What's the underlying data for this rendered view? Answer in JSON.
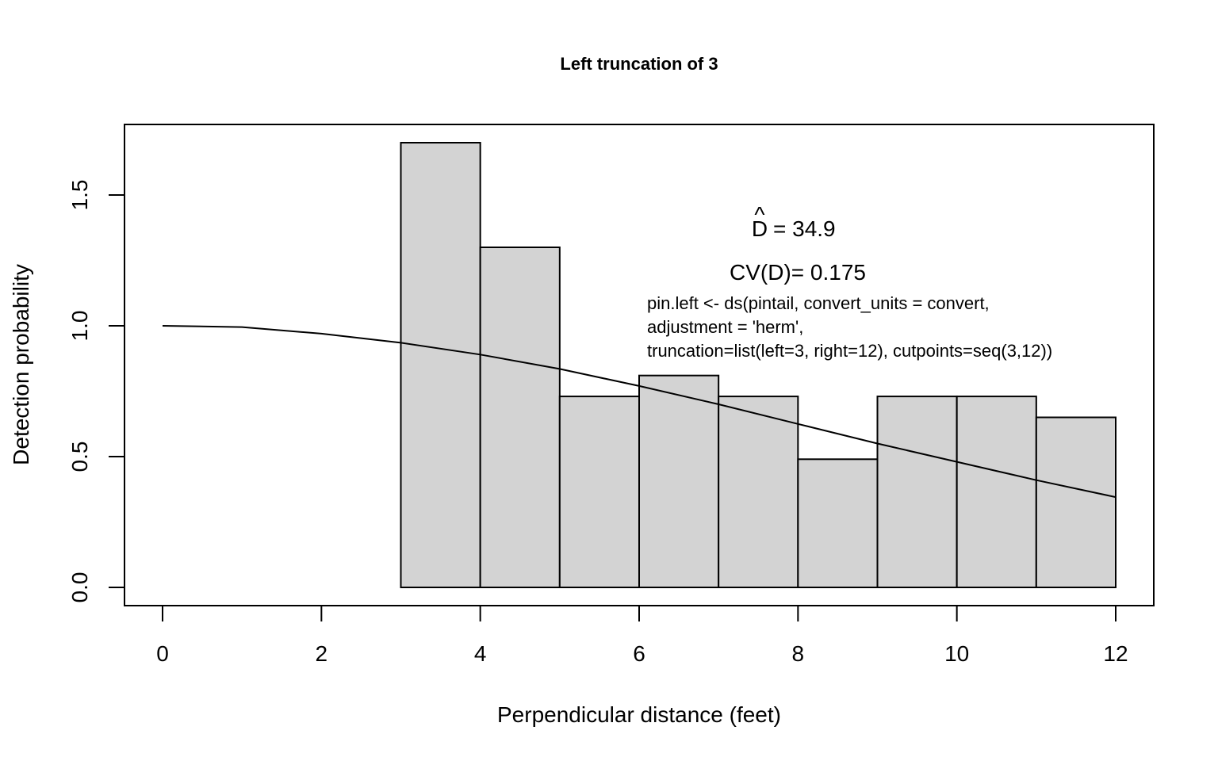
{
  "chart_data": {
    "type": "bar",
    "title": "Left truncation of 3",
    "xlabel": "Perpendicular distance (feet)",
    "ylabel": "Detection probability",
    "xlim": [
      0,
      12
    ],
    "ylim": [
      0,
      1.7
    ],
    "x_ticks": [
      "0",
      "2",
      "4",
      "6",
      "8",
      "10",
      "12"
    ],
    "y_ticks": [
      "0.0",
      "0.5",
      "1.0",
      "1.5"
    ],
    "bins": [
      {
        "x0": 3,
        "x1": 4,
        "value": 1.7
      },
      {
        "x0": 4,
        "x1": 5,
        "value": 1.3
      },
      {
        "x0": 5,
        "x1": 6,
        "value": 0.73
      },
      {
        "x0": 6,
        "x1": 7,
        "value": 0.81
      },
      {
        "x0": 7,
        "x1": 8,
        "value": 0.73
      },
      {
        "x0": 8,
        "x1": 9,
        "value": 0.49
      },
      {
        "x0": 9,
        "x1": 10,
        "value": 0.73
      },
      {
        "x0": 10,
        "x1": 11,
        "value": 0.73
      },
      {
        "x0": 11,
        "x1": 12,
        "value": 0.65
      }
    ],
    "detection_curve": {
      "x": [
        0,
        1,
        2,
        3,
        4,
        5,
        6,
        7,
        8,
        9,
        10,
        11,
        12
      ],
      "y": [
        1.0,
        0.995,
        0.97,
        0.935,
        0.89,
        0.835,
        0.77,
        0.7,
        0.625,
        0.55,
        0.48,
        0.41,
        0.345
      ]
    },
    "bar_fill": "#d3d3d3",
    "grid": false,
    "annotations": {
      "density_symbol": "D",
      "density_hat": "^",
      "density_text": "= 34.9",
      "cv_text": "CV(D)= 0.175",
      "code_lines": [
        "pin.left <- ds(pintail, convert_units = convert,",
        "adjustment = 'herm',",
        "truncation=list(left=3, right=12), cutpoints=seq(3,12))"
      ]
    }
  }
}
